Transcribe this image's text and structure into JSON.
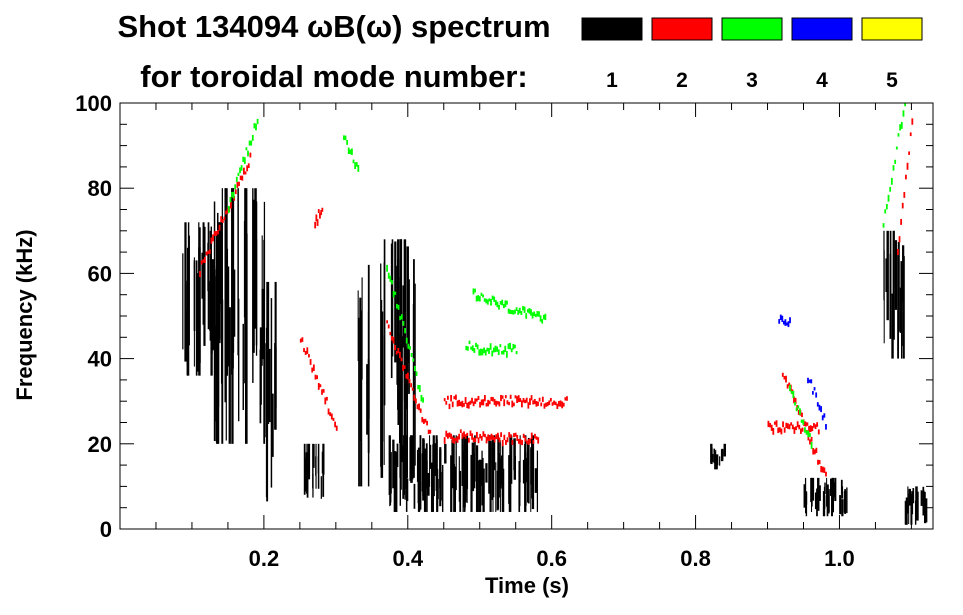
{
  "chart_data": {
    "type": "heatmap",
    "title": "Shot 134094 ωB(ω) spectrum",
    "subtitle": "for toroidal mode number:",
    "xlabel": "Time (s)",
    "ylabel": "Frequency (kHz)",
    "xlim": [
      0.0,
      1.13
    ],
    "ylim": [
      0,
      100
    ],
    "xticks": [
      0.2,
      0.4,
      0.6,
      0.8,
      1.0
    ],
    "xtick_labels": [
      "0.2",
      "0.4",
      "0.6",
      "0.8",
      "1.0"
    ],
    "yticks": [
      0,
      20,
      40,
      60,
      80,
      100
    ],
    "ytick_labels": [
      "0",
      "20",
      "40",
      "60",
      "80",
      "100"
    ],
    "legend": [
      {
        "label": "1",
        "color": "#000000"
      },
      {
        "label": "2",
        "color": "#ff0000"
      },
      {
        "label": "3",
        "color": "#00ff00"
      },
      {
        "label": "4",
        "color": "#0000ff"
      },
      {
        "label": "5",
        "color": "#ffff00"
      }
    ],
    "legend_position": "top-right",
    "series": [
      {
        "mode": 1,
        "color": "#000000",
        "regions": [
          {
            "t0": 0.085,
            "t1": 0.15,
            "f0": 36,
            "f1": 72
          },
          {
            "t0": 0.13,
            "t1": 0.2,
            "f0": 20,
            "f1": 80
          },
          {
            "t0": 0.2,
            "t1": 0.215,
            "f0": 2,
            "f1": 58
          },
          {
            "t0": 0.255,
            "t1": 0.285,
            "f0": 6,
            "f1": 20
          },
          {
            "t0": 0.33,
            "t1": 0.345,
            "f0": 10,
            "f1": 62
          },
          {
            "t0": 0.36,
            "t1": 0.41,
            "f0": 12,
            "f1": 68
          },
          {
            "t0": 0.37,
            "t1": 0.58,
            "f0": 4,
            "f1": 22
          },
          {
            "t0": 0.82,
            "t1": 0.84,
            "f0": 14,
            "f1": 20
          },
          {
            "t0": 0.95,
            "t1": 1.01,
            "f0": 3,
            "f1": 12
          },
          {
            "t0": 1.06,
            "t1": 1.09,
            "f0": 40,
            "f1": 70
          },
          {
            "t0": 1.09,
            "t1": 1.12,
            "f0": 1,
            "f1": 10
          }
        ]
      },
      {
        "mode": 2,
        "color": "#ff0000",
        "chirps": [
          {
            "t0": 0.11,
            "f0": 61,
            "t1": 0.18,
            "f1": 87
          },
          {
            "t0": 0.27,
            "f0": 72,
            "t1": 0.28,
            "f1": 76
          },
          {
            "t0": 0.3,
            "f0": 24,
            "t1": 0.25,
            "f1": 45
          },
          {
            "t0": 0.37,
            "f0": 48,
            "t1": 0.43,
            "f1": 22
          },
          {
            "t0": 0.45,
            "f0": 30,
            "t1": 0.62,
            "f1": 30
          },
          {
            "t0": 0.45,
            "f0": 22,
            "t1": 0.58,
            "f1": 21
          },
          {
            "t0": 0.9,
            "f0": 24,
            "t1": 0.97,
            "f1": 24
          },
          {
            "t0": 0.92,
            "f0": 37,
            "t1": 0.98,
            "f1": 12
          },
          {
            "t0": 1.08,
            "f0": 65,
            "t1": 1.1,
            "f1": 95
          }
        ]
      },
      {
        "mode": 3,
        "color": "#00ff00",
        "chirps": [
          {
            "t0": 0.15,
            "f0": 76,
            "t1": 0.19,
            "f1": 96
          },
          {
            "t0": 0.31,
            "f0": 92,
            "t1": 0.33,
            "f1": 85
          },
          {
            "t0": 0.37,
            "f0": 62,
            "t1": 0.42,
            "f1": 30
          },
          {
            "t0": 0.49,
            "f0": 55,
            "t1": 0.59,
            "f1": 49
          },
          {
            "t0": 0.48,
            "f0": 43,
            "t1": 0.55,
            "f1": 42
          },
          {
            "t0": 0.93,
            "f0": 33,
            "t1": 0.96,
            "f1": 20
          },
          {
            "t0": 1.06,
            "f0": 72,
            "t1": 1.09,
            "f1": 100
          }
        ]
      },
      {
        "mode": 4,
        "color": "#0000ff",
        "chirps": [
          {
            "t0": 0.915,
            "f0": 49,
            "t1": 0.93,
            "f1": 49
          },
          {
            "t0": 0.955,
            "f0": 36,
            "t1": 0.98,
            "f1": 25
          }
        ]
      },
      {
        "mode": 5,
        "color": "#ffff00",
        "chirps": []
      }
    ]
  }
}
